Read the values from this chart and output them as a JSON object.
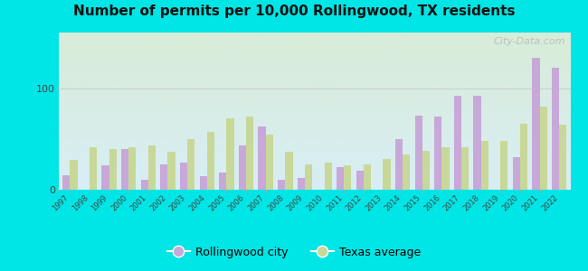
{
  "title": "Number of permits per 10,000 Rollingwood, TX residents",
  "years": [
    1997,
    1998,
    1999,
    2000,
    2001,
    2002,
    2003,
    2004,
    2005,
    2006,
    2007,
    2008,
    2009,
    2010,
    2011,
    2012,
    2013,
    2014,
    2015,
    2016,
    2017,
    2018,
    2019,
    2020,
    2021,
    2022
  ],
  "rollingwood": [
    14,
    0,
    24,
    40,
    10,
    25,
    27,
    13,
    17,
    44,
    62,
    10,
    12,
    0,
    22,
    19,
    0,
    50,
    73,
    72,
    93,
    93,
    0,
    32,
    130,
    120
  ],
  "texas": [
    29,
    42,
    40,
    42,
    44,
    37,
    50,
    57,
    70,
    72,
    54,
    37,
    25,
    27,
    24,
    25,
    30,
    35,
    38,
    42,
    42,
    48,
    48,
    65,
    82,
    64
  ],
  "rollingwood_color": "#c8a8d8",
  "texas_color": "#c8d898",
  "background_outer": "#00e5e5",
  "background_plot_top": "#d8ecd8",
  "background_plot_bottom": "#d8eef5",
  "ylim": [
    0,
    155
  ],
  "yticks": [
    0,
    100
  ],
  "watermark": "City-Data.com"
}
